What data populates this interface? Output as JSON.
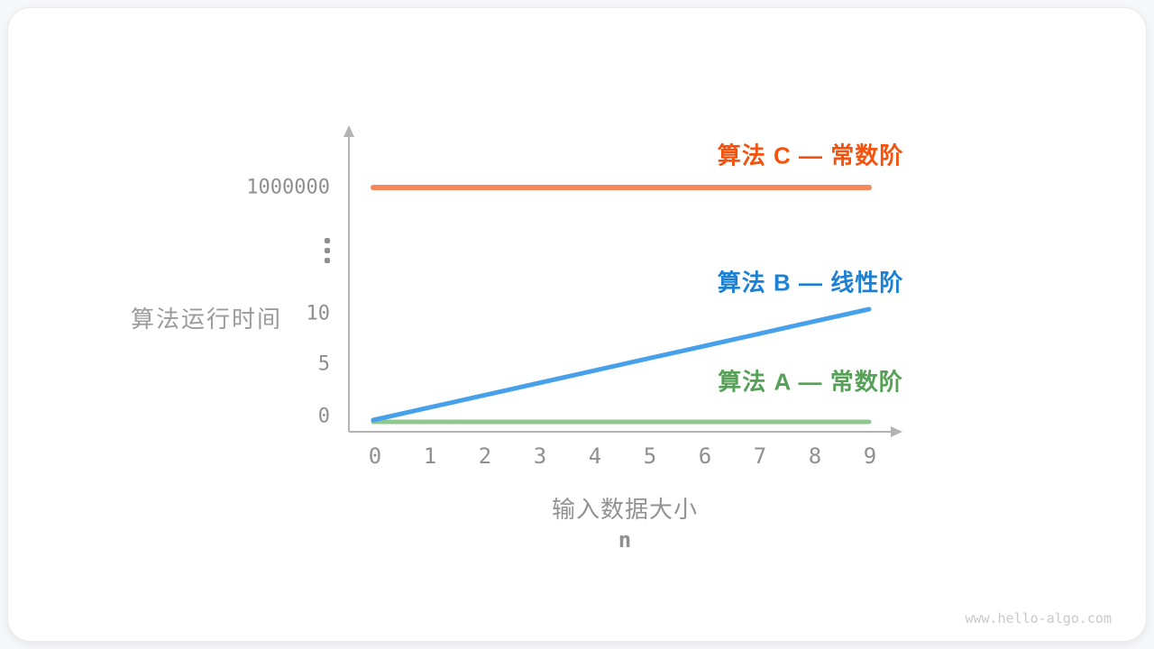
{
  "watermark": "www.hello-algo.com",
  "chart_data": {
    "type": "line",
    "title": "",
    "xlabel": "输入数据大小",
    "xlabel_sub": "n",
    "ylabel": "算法运行时间",
    "x": [
      0,
      1,
      2,
      3,
      4,
      5,
      6,
      7,
      8,
      9
    ],
    "x_ticks": [
      "0",
      "1",
      "2",
      "3",
      "4",
      "5",
      "6",
      "7",
      "8",
      "9"
    ],
    "y_ticks": [
      "0",
      "5",
      "10",
      "⋮",
      "1000000"
    ],
    "axis_break": true,
    "grid": false,
    "legend_position": "labels-near-lines",
    "axis_color": "#b3b3b3",
    "series": [
      {
        "name": "算法 A — 常数阶",
        "order": "constant",
        "values": [
          0,
          0,
          0,
          0,
          0,
          0,
          0,
          0,
          0,
          0
        ],
        "color": "#8fc88e",
        "label_color": "#56a057"
      },
      {
        "name": "算法 B — 线性阶",
        "order": "linear",
        "values": [
          0,
          1,
          2,
          3,
          4,
          5,
          6,
          7,
          8,
          9
        ],
        "color": "#46a1ea",
        "label_color": "#1e80d2"
      },
      {
        "name": "算法 C — 常数阶",
        "order": "constant",
        "values": [
          1000000,
          1000000,
          1000000,
          1000000,
          1000000,
          1000000,
          1000000,
          1000000,
          1000000,
          1000000
        ],
        "color": "#f5875a",
        "label_color": "#f4520d"
      }
    ]
  }
}
